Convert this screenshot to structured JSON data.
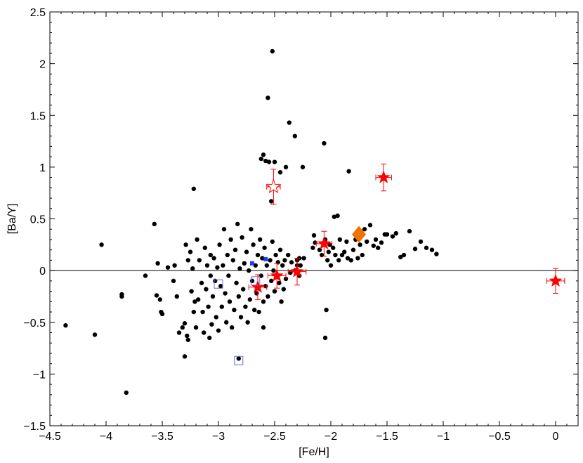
{
  "chart_data": {
    "type": "scatter",
    "title": "",
    "xlabel": "[Fe/H]",
    "ylabel": "[Ba/Y]",
    "xlim": [
      -4.5,
      0.2
    ],
    "ylim": [
      -1.5,
      2.5
    ],
    "x_ticks": [
      -4.5,
      -4,
      -3.5,
      -3,
      -2.5,
      -2,
      -1.5,
      -1,
      -0.5,
      0
    ],
    "x_tick_labels": [
      "−4.5",
      "−4",
      "−3.5",
      "−3",
      "−2.5",
      "−2",
      "−1.5",
      "−1",
      "−0.5",
      "0"
    ],
    "y_ticks": [
      -1.5,
      -1,
      -0.5,
      0,
      0.5,
      1,
      1.5,
      2,
      2.5
    ],
    "y_tick_labels": [
      "−1.5",
      "−1",
      "−0.5",
      "0",
      "0.5",
      "1",
      "1.5",
      "2",
      "2.5"
    ],
    "reference_line_y": 0,
    "grid": false,
    "colors": {
      "black_points": "#000000",
      "red_stars": "#ff0000",
      "blue_markers": "#1f3cff",
      "open_squares": "#6a6ae0",
      "diamond": "#f07000",
      "zero_line": "#000000"
    },
    "series": [
      {
        "marker": "filled-circle",
        "color": "#000000",
        "points": [
          [
            -4.36,
            -0.53
          ],
          [
            -4.1,
            -0.62
          ],
          [
            -4.04,
            0.25
          ],
          [
            -3.86,
            -0.23
          ],
          [
            -3.86,
            -0.25
          ],
          [
            -3.82,
            -1.18
          ],
          [
            -3.65,
            -0.05
          ],
          [
            -3.57,
            0.45
          ],
          [
            -3.55,
            -0.24
          ],
          [
            -3.54,
            0.07
          ],
          [
            -3.52,
            -0.28
          ],
          [
            -3.51,
            -0.4
          ],
          [
            -3.5,
            -0.42
          ],
          [
            -3.45,
            0.03
          ],
          [
            -3.4,
            -0.1
          ],
          [
            -3.39,
            0.05
          ],
          [
            -3.37,
            -0.25
          ],
          [
            -3.35,
            -0.6
          ],
          [
            -3.32,
            -0.55
          ],
          [
            -3.3,
            -0.51
          ],
          [
            -3.3,
            -0.83
          ],
          [
            -3.29,
            0.25
          ],
          [
            -3.28,
            -0.63
          ],
          [
            -3.27,
            0.1
          ],
          [
            -3.27,
            -0.67
          ],
          [
            -3.25,
            0.18
          ],
          [
            -3.24,
            -0.2
          ],
          [
            -3.23,
            0.02
          ],
          [
            -3.22,
            -0.4
          ],
          [
            -3.22,
            0.79
          ],
          [
            -3.21,
            -0.3
          ],
          [
            -3.2,
            -0.55
          ],
          [
            -3.19,
            0.3
          ],
          [
            -3.18,
            -0.28
          ],
          [
            -3.17,
            0.1
          ],
          [
            -3.15,
            -0.12
          ],
          [
            -3.14,
            -0.4
          ],
          [
            -3.13,
            -0.6
          ],
          [
            -3.12,
            0.22
          ],
          [
            -3.11,
            -0.18
          ],
          [
            -3.1,
            0.05
          ],
          [
            -3.09,
            -0.35
          ],
          [
            -3.08,
            -0.65
          ],
          [
            -3.07,
            0.15
          ],
          [
            -3.07,
            -0.05
          ],
          [
            -3.06,
            -0.52
          ],
          [
            -3.05,
            -0.25
          ],
          [
            -3.04,
            0.12
          ],
          [
            -3.03,
            -0.1
          ],
          [
            -3.02,
            -0.45
          ],
          [
            -3.01,
            0.03
          ],
          [
            -3.0,
            -0.58
          ],
          [
            -2.99,
            0.25
          ],
          [
            -2.98,
            -0.15
          ],
          [
            -2.97,
            -0.35
          ],
          [
            -2.96,
            0.05
          ],
          [
            -2.95,
            0.4
          ],
          [
            -2.94,
            -0.22
          ],
          [
            -2.93,
            -0.5
          ],
          [
            -2.92,
            0.15
          ],
          [
            -2.91,
            -0.05
          ],
          [
            -2.9,
            -0.3
          ],
          [
            -2.89,
            0.3
          ],
          [
            -2.88,
            -0.55
          ],
          [
            -2.87,
            0.1
          ],
          [
            -2.86,
            -0.38
          ],
          [
            -2.85,
            0.2
          ],
          [
            -2.84,
            -0.12
          ],
          [
            -2.83,
            0.45
          ],
          [
            -2.82,
            -0.25
          ],
          [
            -2.82,
            -0.85
          ],
          [
            -2.81,
            0.02
          ],
          [
            -2.8,
            -0.45
          ],
          [
            -2.79,
            0.32
          ],
          [
            -2.78,
            -0.18
          ],
          [
            -2.77,
            0.07
          ],
          [
            -2.76,
            -0.35
          ],
          [
            -2.75,
            0.18
          ],
          [
            -2.74,
            -0.5
          ],
          [
            -2.73,
            0.0
          ],
          [
            -2.72,
            -0.28
          ],
          [
            -2.71,
            0.4
          ],
          [
            -2.7,
            -0.1
          ],
          [
            -2.69,
            0.25
          ],
          [
            -2.68,
            -0.38
          ],
          [
            -2.67,
            0.05
          ],
          [
            -2.66,
            -0.22
          ],
          [
            -2.65,
            0.15
          ],
          [
            -2.64,
            -0.4
          ],
          [
            -2.63,
            0.3
          ],
          [
            -2.62,
            -0.05
          ],
          [
            -2.61,
            0.12
          ],
          [
            -2.6,
            -0.3
          ],
          [
            -2.6,
            -0.55
          ],
          [
            -2.59,
            0.22
          ],
          [
            -2.58,
            1.06
          ],
          [
            -2.58,
            -0.15
          ],
          [
            -2.57,
            0.05
          ],
          [
            -2.56,
            1.67
          ],
          [
            -2.56,
            -0.25
          ],
          [
            -2.55,
            1.05
          ],
          [
            -2.54,
            0.1
          ],
          [
            -2.53,
            0.67
          ],
          [
            -2.53,
            -0.1
          ],
          [
            -2.52,
            2.12
          ],
          [
            -2.52,
            0.28
          ],
          [
            -2.51,
            0.0
          ],
          [
            -2.5,
            -0.2
          ],
          [
            -2.49,
            0.15
          ],
          [
            -2.48,
            -0.05
          ],
          [
            -2.47,
            0.08
          ],
          [
            -2.46,
            -0.12
          ],
          [
            -2.45,
            0.2
          ],
          [
            -2.44,
            -0.3
          ],
          [
            -2.43,
            0.05
          ],
          [
            -2.42,
            -0.18
          ],
          [
            -2.41,
            0.1
          ],
          [
            -2.4,
            -0.08
          ],
          [
            -2.38,
            0.15
          ],
          [
            -2.37,
            1.43
          ],
          [
            -2.36,
            -0.02
          ],
          [
            -2.35,
            0.08
          ],
          [
            -2.32,
            1.3
          ],
          [
            -2.3,
            0.1
          ],
          [
            -2.28,
            -0.05
          ],
          [
            -2.27,
            0.05
          ],
          [
            -2.25,
            1.0
          ],
          [
            -2.24,
            0.12
          ],
          [
            -2.6,
            1.12
          ],
          [
            -2.62,
            1.08
          ],
          [
            -2.5,
            1.05
          ],
          [
            -2.4,
            1.0
          ],
          [
            -2.45,
            0.95
          ],
          [
            -2.1,
            0.2
          ],
          [
            -2.08,
            0.15
          ],
          [
            -2.06,
            1.23
          ],
          [
            -2.05,
            0.3
          ],
          [
            -2.04,
            -0.38
          ],
          [
            -2.03,
            0.1
          ],
          [
            -2.02,
            0.18
          ],
          [
            -2.01,
            0.25
          ],
          [
            -2.0,
            0.05
          ],
          [
            -1.98,
            0.22
          ],
          [
            -1.97,
            0.52
          ],
          [
            -1.96,
            0.15
          ],
          [
            -1.94,
            0.53
          ],
          [
            -1.93,
            0.1
          ],
          [
            -1.92,
            0.3
          ],
          [
            -1.9,
            0.15
          ],
          [
            -1.88,
            0.18
          ],
          [
            -1.86,
            0.28
          ],
          [
            -1.85,
            0.12
          ],
          [
            -1.84,
            0.96
          ],
          [
            -1.82,
            0.1
          ],
          [
            -1.8,
            0.2
          ],
          [
            -1.78,
            0.3
          ],
          [
            -1.76,
            0.12
          ],
          [
            -1.74,
            0.25
          ],
          [
            -1.72,
            0.15
          ],
          [
            -1.7,
            0.4
          ],
          [
            -1.68,
            0.28
          ],
          [
            -1.65,
            0.44
          ],
          [
            -1.62,
            0.24
          ],
          [
            -1.6,
            0.3
          ],
          [
            -1.58,
            0.22
          ],
          [
            -1.55,
            0.27
          ],
          [
            -1.52,
            0.35
          ],
          [
            -1.5,
            0.35
          ],
          [
            -1.45,
            0.33
          ],
          [
            -1.42,
            0.36
          ],
          [
            -1.38,
            0.13
          ],
          [
            -1.35,
            0.15
          ],
          [
            -1.3,
            0.38
          ],
          [
            -1.25,
            0.21
          ],
          [
            -1.2,
            0.28
          ],
          [
            -1.15,
            0.22
          ],
          [
            -1.1,
            0.2
          ],
          [
            -1.06,
            0.16
          ],
          [
            -2.15,
            0.34
          ],
          [
            -2.14,
            0.27
          ],
          [
            -2.16,
            0.22
          ],
          [
            -2.05,
            -0.65
          ],
          [
            -2.3,
            0.05
          ],
          [
            -2.32,
            0.0
          ],
          [
            -2.28,
            0.12
          ]
        ]
      },
      {
        "marker": "filled-star",
        "color": "#ff0000",
        "points": [
          {
            "x": -2.65,
            "y": -0.16,
            "xerr": 0.08,
            "yerr": 0.12
          },
          {
            "x": -2.48,
            "y": -0.05,
            "xerr": 0.08,
            "yerr": 0.12
          },
          {
            "x": -2.3,
            "y": -0.01,
            "xerr": 0.08,
            "yerr": 0.13
          },
          {
            "x": -2.06,
            "y": 0.26,
            "xerr": 0.07,
            "yerr": 0.12
          },
          {
            "x": -1.53,
            "y": 0.9,
            "xerr": 0.07,
            "yerr": 0.13
          },
          {
            "x": 0.0,
            "y": -0.1,
            "xerr": 0.08,
            "yerr": 0.12
          }
        ]
      },
      {
        "marker": "open-star",
        "color": "#ff0000",
        "points": [
          {
            "x": -2.51,
            "y": 0.81,
            "xerr": 0.06,
            "yerr": 0.17
          }
        ]
      },
      {
        "marker": "open-square",
        "color": "#6a6ae0",
        "points": [
          [
            -3.0,
            -0.13
          ],
          [
            -2.67,
            -0.1
          ],
          [
            -2.82,
            -0.87
          ]
        ]
      },
      {
        "marker": "filled-square",
        "color": "#1f3cff",
        "points": [
          [
            -2.7,
            0.07
          ],
          [
            -2.58,
            0.11
          ]
        ]
      },
      {
        "marker": "filled-diamond",
        "color": "#f07000",
        "points": [
          [
            -1.75,
            0.35
          ]
        ]
      }
    ]
  }
}
